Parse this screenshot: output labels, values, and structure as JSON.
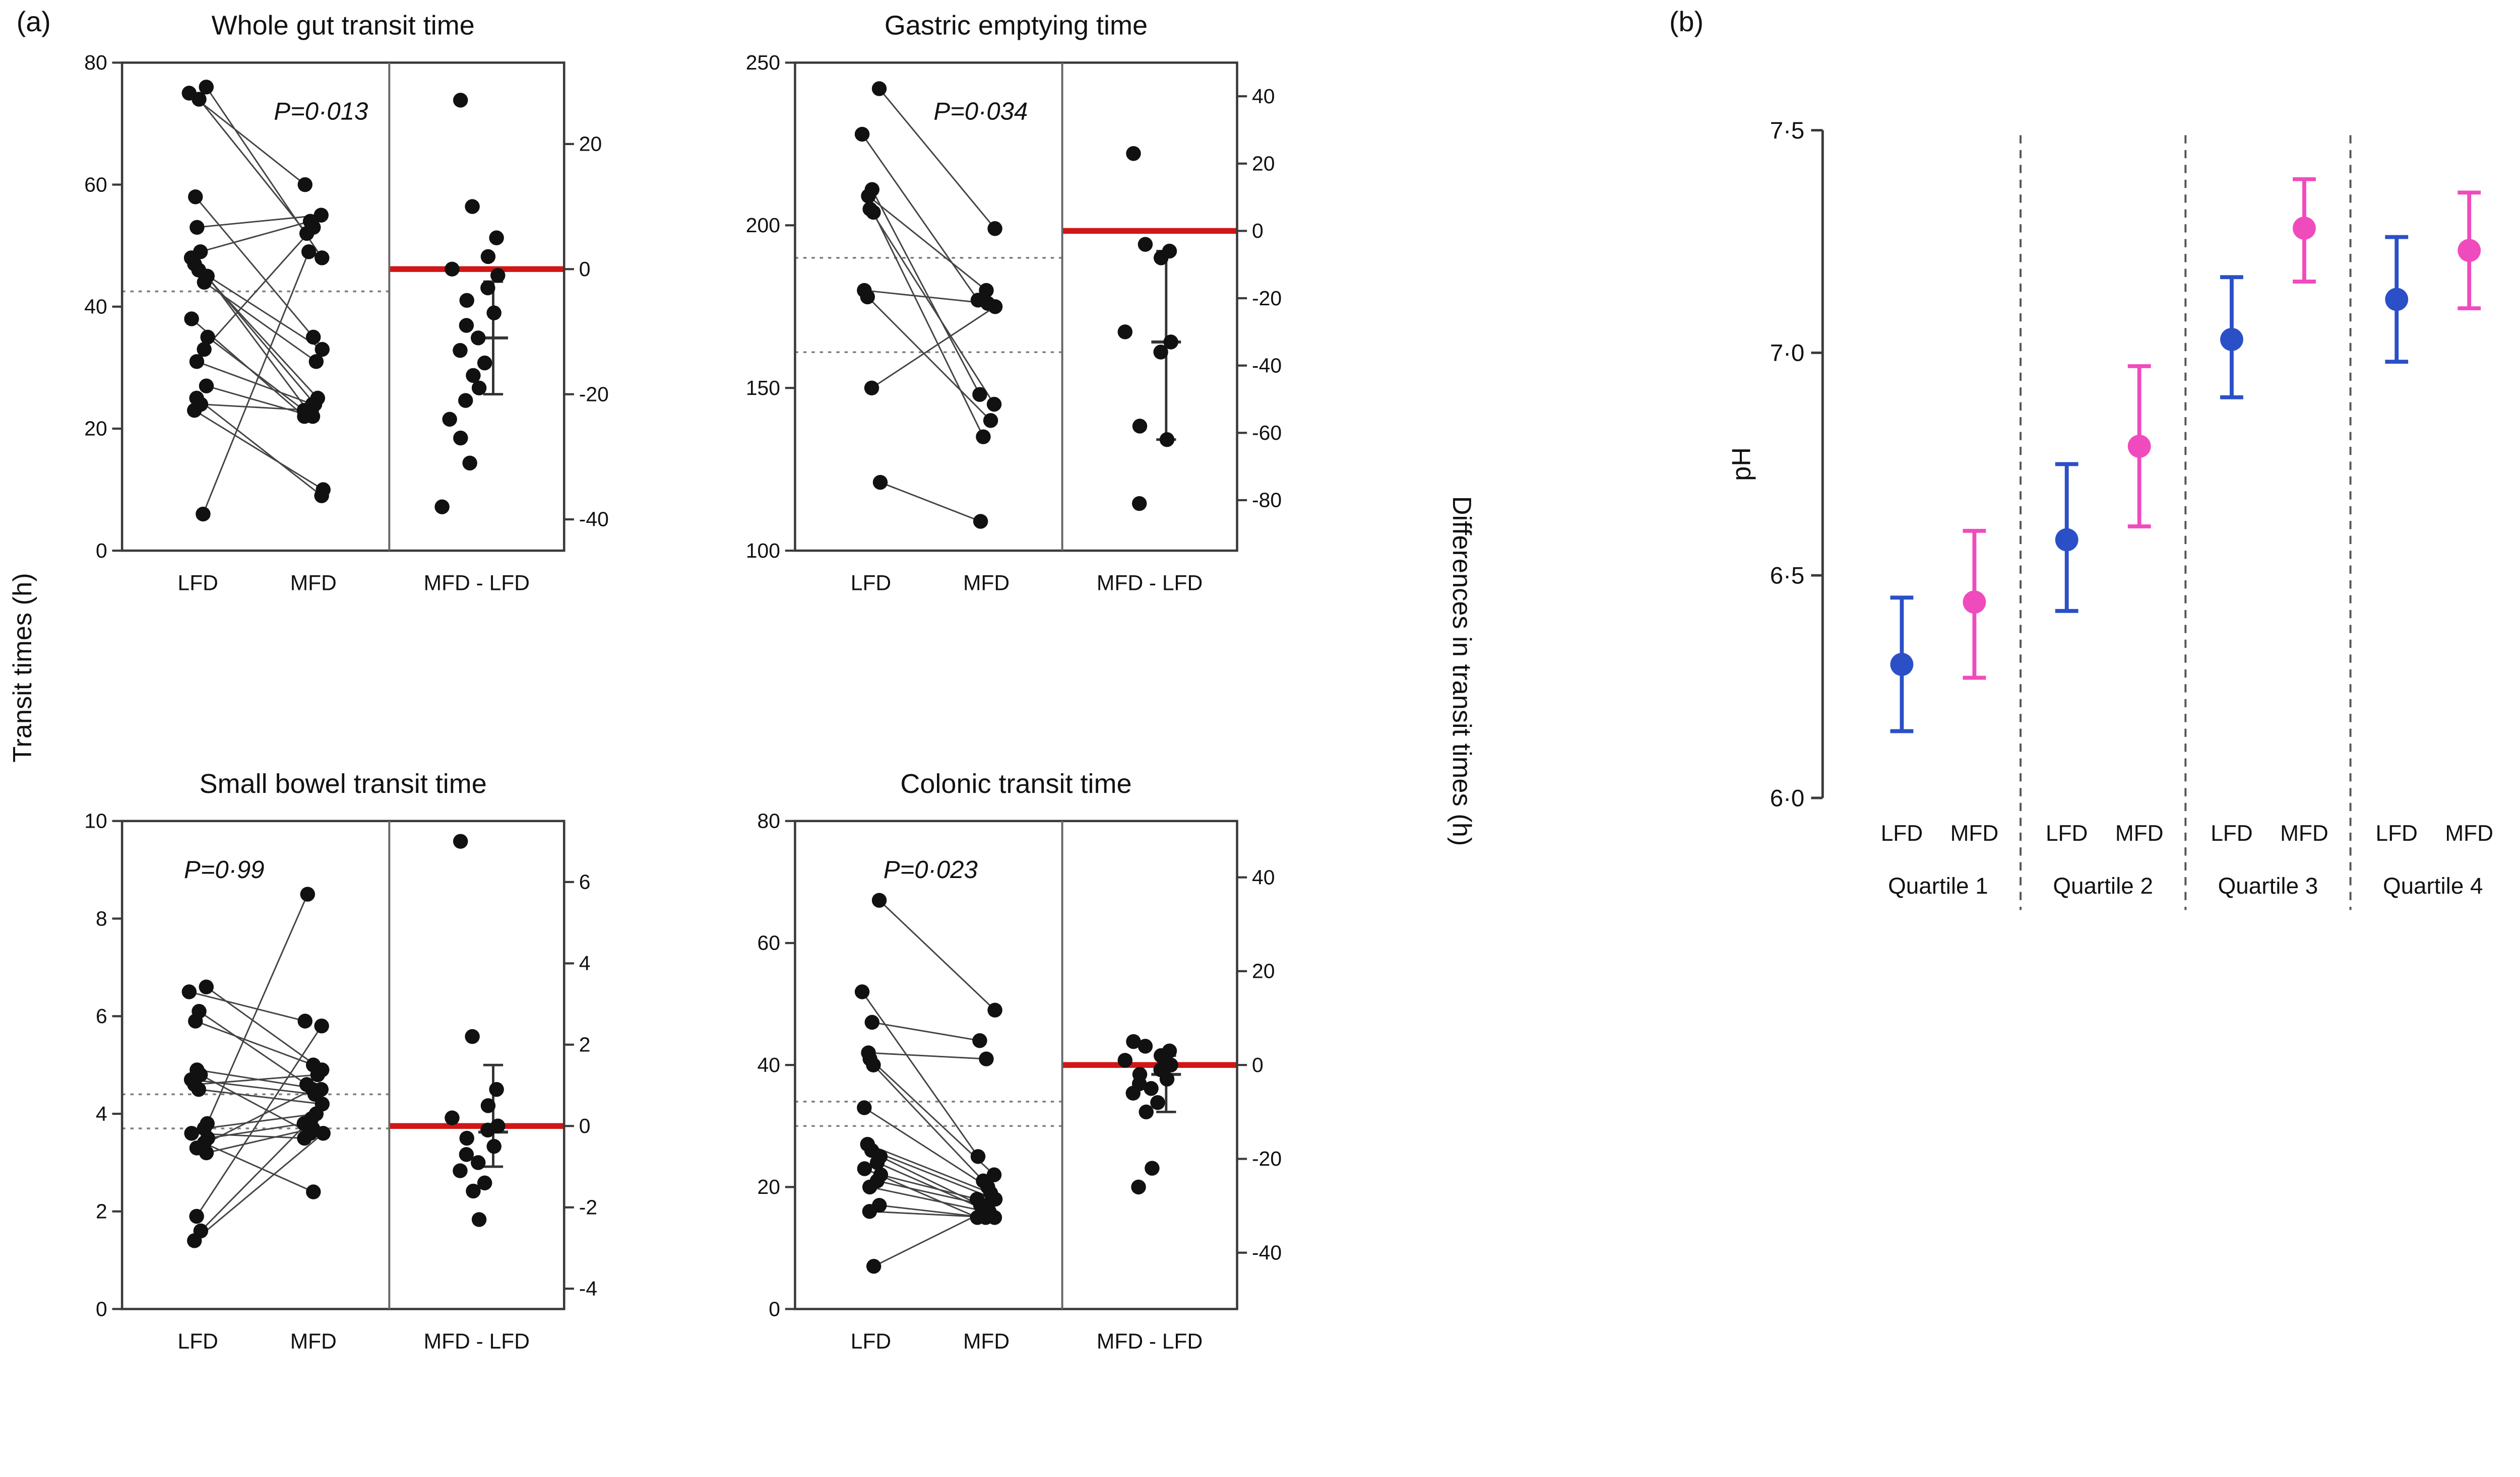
{
  "figure": {
    "panel_a_label": "(a)",
    "panel_b_label": "(b)",
    "left_axis_label": "Transit times (h)",
    "right_axis_label": "Differences in transit times (h)"
  },
  "colors": {
    "lfd": "#2b4fc7",
    "mfd": "#f04bbd",
    "zero_line": "#d01616",
    "p_text": "#ee1111",
    "point": "#111111",
    "axis": "#3a3a3a",
    "dotted": "#808080",
    "separator": "#555555",
    "pair_line": "#444444"
  },
  "chart_data": [
    {
      "type": "paired-scatter-with-differences",
      "title": "Whole gut transit time",
      "p_value": "P=0·013",
      "p_pos": {
        "x_frac": 0.45,
        "y_frac": 0.09,
        "anchor": "middle"
      },
      "categories": [
        "LFD",
        "MFD",
        "MFD - LFD"
      ],
      "ylim": [
        0,
        80
      ],
      "yticks": [
        0,
        20,
        40,
        60,
        80
      ],
      "diff_ylim": [
        -45,
        33
      ],
      "diff_yticks": [
        20,
        0,
        -20,
        -40
      ],
      "dotted_lines": [
        42.5
      ],
      "zero_line": 0,
      "pairs": [
        [
          76,
          48
        ],
        [
          75,
          60
        ],
        [
          74,
          52
        ],
        [
          58,
          35
        ],
        [
          53,
          55
        ],
        [
          49,
          54
        ],
        [
          48,
          24
        ],
        [
          47,
          25
        ],
        [
          46,
          33
        ],
        [
          45,
          23
        ],
        [
          44,
          31
        ],
        [
          38,
          22
        ],
        [
          35,
          23
        ],
        [
          33,
          53
        ],
        [
          31,
          24
        ],
        [
          27,
          22
        ],
        [
          25,
          9
        ],
        [
          24,
          23
        ],
        [
          23,
          10
        ],
        [
          6,
          49
        ]
      ],
      "differences": [
        27,
        10,
        5,
        2,
        0,
        -1,
        -3,
        -5,
        -7,
        -9,
        -11,
        -13,
        -15,
        -17,
        -19,
        -21,
        -24,
        -27,
        -31,
        -38
      ],
      "diff_summary": {
        "hi": -2,
        "median": -11,
        "lo": -20
      }
    },
    {
      "type": "paired-scatter-with-differences",
      "title": "Gastric emptying time",
      "p_value": "P=0·034",
      "p_pos": {
        "x_frac": 0.42,
        "y_frac": 0.09,
        "anchor": "middle"
      },
      "categories": [
        "LFD",
        "MFD",
        "MFD - LFD"
      ],
      "ylim": [
        100,
        250
      ],
      "yticks": [
        100,
        150,
        200,
        250
      ],
      "diff_ylim": [
        -95,
        50
      ],
      "diff_yticks": [
        40,
        20,
        0,
        -20,
        -40,
        -60,
        -80
      ],
      "dotted_lines": [
        190,
        161
      ],
      "zero_line": 0,
      "pairs": [
        [
          242,
          199
        ],
        [
          228,
          177
        ],
        [
          211,
          148
        ],
        [
          209,
          180
        ],
        [
          205,
          145
        ],
        [
          204,
          135
        ],
        [
          180,
          176
        ],
        [
          178,
          140
        ],
        [
          150,
          175
        ],
        [
          121,
          109
        ]
      ],
      "differences": [
        23,
        -4,
        -6,
        -8,
        -30,
        -33,
        -36,
        -58,
        -62,
        -81
      ],
      "diff_summary": {
        "hi": -6,
        "median": -33,
        "lo": -62
      }
    },
    {
      "type": "paired-scatter-with-differences",
      "title": "Small bowel transit time",
      "p_value": "P=0·99",
      "p_pos": {
        "x_frac": 0.14,
        "y_frac": 0.09,
        "anchor": "start"
      },
      "categories": [
        "LFD",
        "MFD",
        "MFD - LFD"
      ],
      "ylim": [
        0,
        10
      ],
      "yticks": [
        0,
        2,
        4,
        6,
        8,
        10
      ],
      "diff_ylim": [
        -4.5,
        7.5
      ],
      "diff_yticks": [
        6,
        4,
        2,
        0,
        -2,
        -4
      ],
      "dotted_lines": [
        4.4,
        3.7
      ],
      "zero_line": 0,
      "pairs": [
        [
          6.6,
          4.9
        ],
        [
          6.5,
          5.9
        ],
        [
          6.1,
          4.6
        ],
        [
          5.9,
          5.0
        ],
        [
          4.9,
          4.5
        ],
        [
          4.8,
          3.6
        ],
        [
          4.7,
          4.4
        ],
        [
          4.6,
          4.8
        ],
        [
          4.5,
          4.2
        ],
        [
          3.8,
          8.5
        ],
        [
          3.7,
          4.0
        ],
        [
          3.6,
          3.5
        ],
        [
          3.5,
          3.8
        ],
        [
          3.4,
          2.4
        ],
        [
          3.3,
          4.5
        ],
        [
          3.2,
          3.7
        ],
        [
          1.9,
          5.8
        ],
        [
          1.6,
          3.9
        ],
        [
          1.4,
          3.6
        ]
      ],
      "differences": [
        7,
        2.2,
        0.9,
        0.5,
        0.2,
        0,
        -0.1,
        -0.3,
        -0.5,
        -0.7,
        -0.9,
        -1.1,
        -1.4,
        -1.6,
        -2.3
      ],
      "diff_summary": {
        "hi": 1.5,
        "median": -0.15,
        "lo": -1.0
      }
    },
    {
      "type": "paired-scatter-with-differences",
      "title": "Colonic transit time",
      "p_value": "P=0·023",
      "p_pos": {
        "x_frac": 0.2,
        "y_frac": 0.09,
        "anchor": "start"
      },
      "categories": [
        "LFD",
        "MFD",
        "MFD - LFD"
      ],
      "ylim": [
        0,
        80
      ],
      "yticks": [
        0,
        20,
        40,
        60,
        80
      ],
      "diff_ylim": [
        -52,
        52
      ],
      "diff_yticks": [
        40,
        20,
        0,
        -20,
        -40
      ],
      "dotted_lines": [
        34,
        30
      ],
      "zero_line": 0,
      "pairs": [
        [
          67,
          49
        ],
        [
          52,
          25
        ],
        [
          47,
          44
        ],
        [
          42,
          41
        ],
        [
          41,
          22
        ],
        [
          40,
          21
        ],
        [
          33,
          20
        ],
        [
          27,
          19
        ],
        [
          26,
          18
        ],
        [
          25,
          17
        ],
        [
          24,
          16
        ],
        [
          23,
          15
        ],
        [
          22,
          18
        ],
        [
          21,
          17
        ],
        [
          20,
          16
        ],
        [
          17,
          15
        ],
        [
          16,
          15
        ],
        [
          7,
          16
        ]
      ],
      "differences": [
        5,
        4,
        3,
        2,
        1,
        0,
        -1,
        -2,
        -3,
        -4,
        -5,
        -6,
        -8,
        -10,
        -22,
        -26
      ],
      "diff_summary": {
        "hi": 2,
        "median": -2,
        "lo": -10
      }
    },
    {
      "type": "errorbar",
      "ylabel": "pH",
      "ylim": [
        6.0,
        7.5
      ],
      "yticks": [
        {
          "v": 6.0,
          "label": "6·0"
        },
        {
          "v": 6.5,
          "label": "6·5"
        },
        {
          "v": 7.0,
          "label": "7·0"
        },
        {
          "v": 7.5,
          "label": "7·5"
        }
      ],
      "series_names": [
        "LFD",
        "MFD"
      ],
      "groups": [
        {
          "label": "Quartile 1",
          "points": [
            {
              "series": "LFD",
              "mean": 6.3,
              "lo": 6.15,
              "hi": 6.45
            },
            {
              "series": "MFD",
              "mean": 6.44,
              "lo": 6.27,
              "hi": 6.6
            }
          ]
        },
        {
          "label": "Quartile 2",
          "points": [
            {
              "series": "LFD",
              "mean": 6.58,
              "lo": 6.42,
              "hi": 6.75
            },
            {
              "series": "MFD",
              "mean": 6.79,
              "lo": 6.61,
              "hi": 6.97
            }
          ]
        },
        {
          "label": "Quartile 3",
          "points": [
            {
              "series": "LFD",
              "mean": 7.03,
              "lo": 6.9,
              "hi": 7.17
            },
            {
              "series": "MFD",
              "mean": 7.28,
              "lo": 7.16,
              "hi": 7.39
            }
          ]
        },
        {
          "label": "Quartile 4",
          "points": [
            {
              "series": "LFD",
              "mean": 7.12,
              "lo": 6.98,
              "hi": 7.26
            },
            {
              "series": "MFD",
              "mean": 7.23,
              "lo": 7.1,
              "hi": 7.36
            }
          ]
        }
      ]
    }
  ]
}
